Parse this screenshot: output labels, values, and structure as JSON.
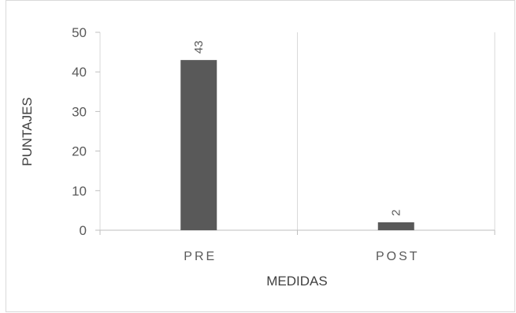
{
  "chart_data": {
    "type": "bar",
    "categories": [
      "PRE",
      "POST"
    ],
    "values": [
      43,
      2
    ],
    "data_labels": [
      "43",
      "2"
    ],
    "title": "",
    "xlabel": "MEDIDAS",
    "ylabel": "PUNTAJES",
    "ylim": [
      0,
      50
    ],
    "yticks": [
      "0",
      "10",
      "20",
      "30",
      "40",
      "50"
    ],
    "grid": "vertical category separators",
    "legend": "none",
    "bar_color": "#595959",
    "axis_color": "#bfbfbf"
  }
}
